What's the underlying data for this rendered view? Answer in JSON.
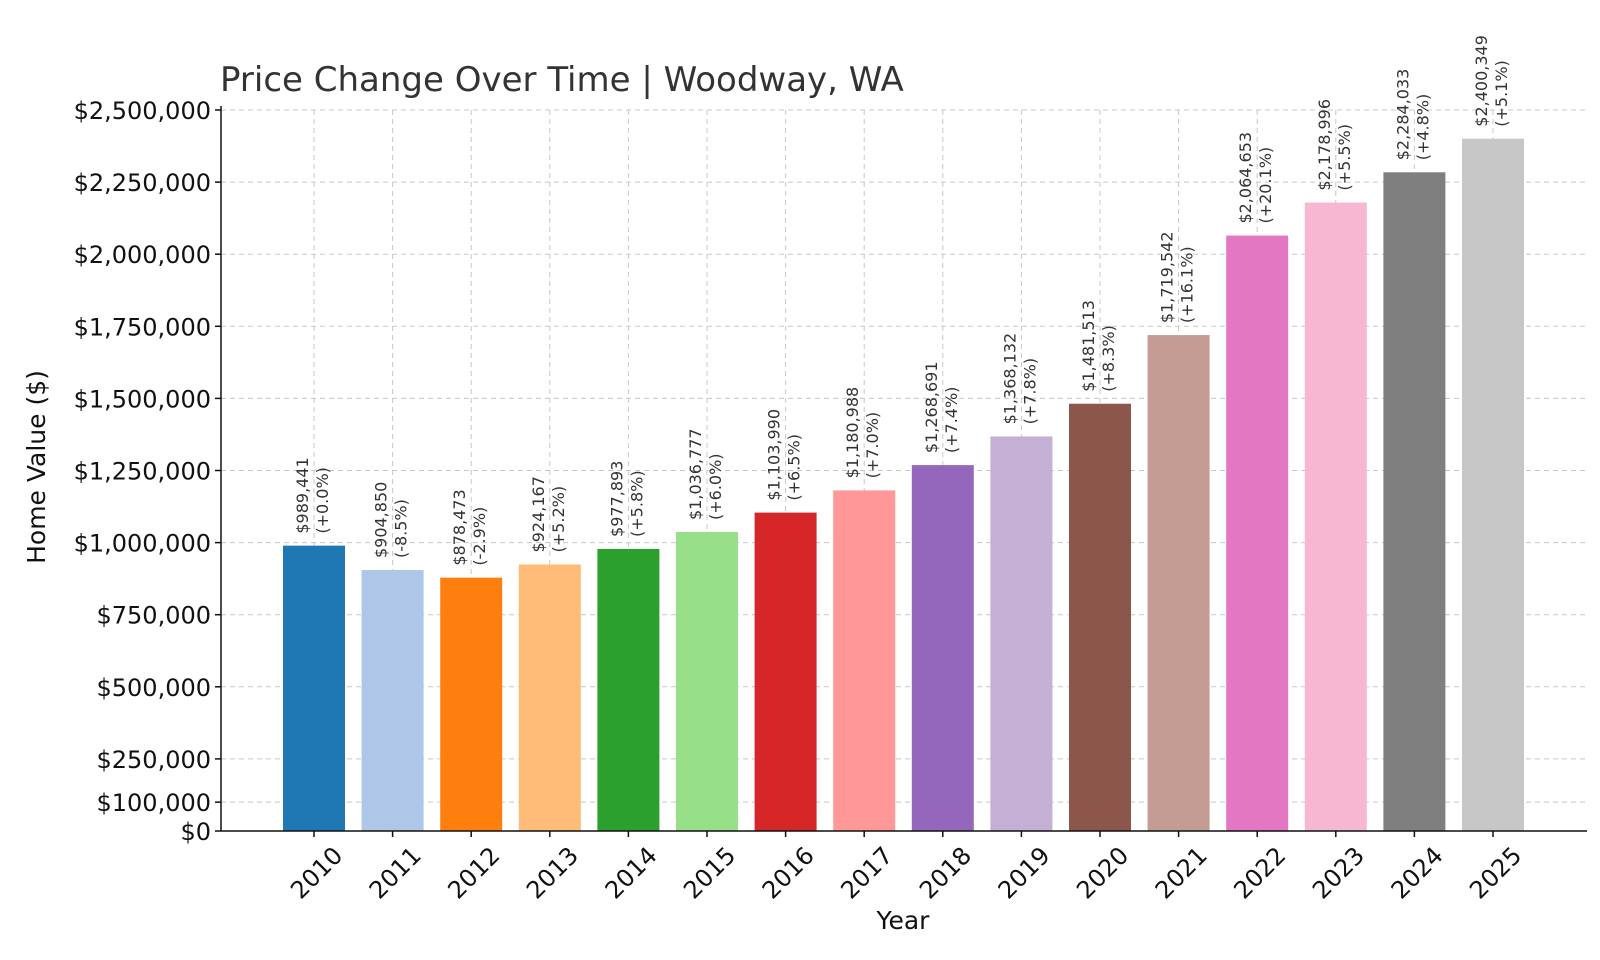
{
  "chart_data": {
    "type": "bar",
    "title": "Price Change Over Time | Woodway, WA",
    "xlabel": "Year",
    "ylabel": "Home Value ($)",
    "categories": [
      "2010",
      "2011",
      "2012",
      "2013",
      "2014",
      "2015",
      "2016",
      "2017",
      "2018",
      "2019",
      "2020",
      "2021",
      "2022",
      "2023",
      "2024",
      "2025"
    ],
    "values": [
      989441,
      904850,
      878473,
      924167,
      977893,
      1036777,
      1103990,
      1180988,
      1268691,
      1368132,
      1481513,
      1719542,
      2064653,
      2178996,
      2284033,
      2400349
    ],
    "value_labels": [
      "$989,441",
      "$904,850",
      "$878,473",
      "$924,167",
      "$977,893",
      "$1,036,777",
      "$1,103,990",
      "$1,180,988",
      "$1,268,691",
      "$1,368,132",
      "$1,481,513",
      "$1,719,542",
      "$2,064,653",
      "$2,178,996",
      "$2,284,033",
      "$2,400,349"
    ],
    "change_labels": [
      "(+0.0%)",
      "(-8.5%)",
      "(-2.9%)",
      "(+5.2%)",
      "(+5.8%)",
      "(+6.0%)",
      "(+6.5%)",
      "(+7.0%)",
      "(+7.4%)",
      "(+7.8%)",
      "(+8.3%)",
      "(+16.1%)",
      "(+20.1%)",
      "(+5.5%)",
      "(+4.8%)",
      "(+5.1%)"
    ],
    "colors": [
      "#1f77b4",
      "#aec7e8",
      "#ff7f0e",
      "#ffbb78",
      "#2ca02c",
      "#98df8a",
      "#d62728",
      "#ff9896",
      "#9467bd",
      "#c5b0d5",
      "#8c564b",
      "#c49c94",
      "#e377c2",
      "#f7b6d2",
      "#7f7f7f",
      "#c7c7c7"
    ],
    "yticks": [
      0,
      100000,
      250000,
      500000,
      750000,
      1000000,
      1250000,
      1500000,
      1750000,
      2000000,
      2250000,
      2500000
    ],
    "ytick_labels": [
      "$0",
      "$100,000",
      "$250,000",
      "$500,000",
      "$750,000",
      "$1,000,000",
      "$1,250,000",
      "$1,500,000",
      "$1,750,000",
      "$2,000,000",
      "$2,250,000",
      "$2,500,000"
    ],
    "ylim": [
      0,
      2500000
    ],
    "grid": true
  }
}
